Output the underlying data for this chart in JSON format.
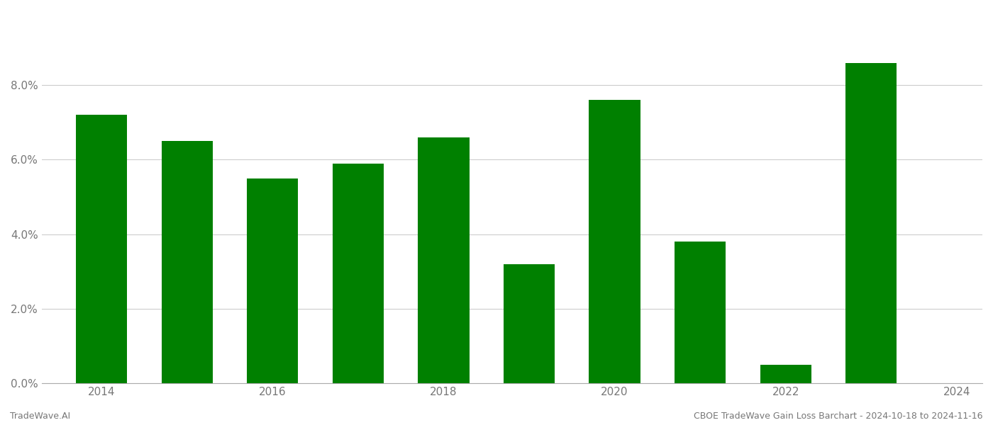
{
  "years": [
    2014,
    2015,
    2016,
    2017,
    2018,
    2019,
    2020,
    2021,
    2022,
    2023
  ],
  "values": [
    0.072,
    0.065,
    0.055,
    0.059,
    0.066,
    0.032,
    0.076,
    0.038,
    0.005,
    0.086
  ],
  "bar_color": "#008000",
  "background_color": "#ffffff",
  "grid_color": "#cccccc",
  "ylim": [
    0,
    0.1
  ],
  "yticks": [
    0.0,
    0.02,
    0.04,
    0.06,
    0.08
  ],
  "xticks": [
    2014,
    2016,
    2018,
    2020,
    2022,
    2024
  ],
  "xlim_left": 2013.3,
  "xlim_right": 2024.3,
  "footer_left": "TradeWave.AI",
  "footer_right": "CBOE TradeWave Gain Loss Barchart - 2024-10-18 to 2024-11-16",
  "bar_width": 0.6,
  "tick_fontsize": 11,
  "footer_fontsize": 9,
  "tick_color": "#777777"
}
